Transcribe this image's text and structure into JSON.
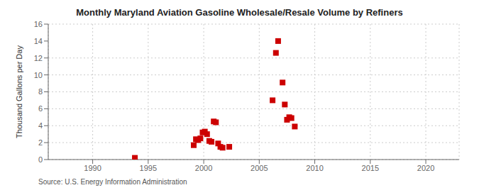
{
  "chart_data": {
    "type": "scatter",
    "title": "Monthly Maryland Aviation Gasoline Wholesale/Resale Volume by Refiners",
    "ylabel": "Thousand Gallons per Day",
    "annotations": [
      "Source: U.S. Energy Information Administration"
    ],
    "color": "#cc0000",
    "marker": "square",
    "grid": true,
    "xlim": [
      1986,
      2023
    ],
    "ylim": [
      0,
      16
    ],
    "xticks": [
      1990,
      1995,
      2000,
      2005,
      2010,
      2015,
      2020
    ],
    "yticks": [
      0,
      2,
      4,
      6,
      8,
      10,
      12,
      14,
      16
    ],
    "x": [
      1993.8,
      1999.1,
      1999.3,
      1999.5,
      1999.7,
      1999.9,
      2000.1,
      2000.3,
      2000.5,
      2000.7,
      2000.9,
      2001.1,
      2001.3,
      2001.5,
      2001.7,
      2002.3,
      2006.2,
      2006.5,
      2006.7,
      2007.1,
      2007.3,
      2007.5,
      2007.7,
      2007.9,
      2008.2
    ],
    "values": [
      0.2,
      1.7,
      2.4,
      2.3,
      2.5,
      3.2,
      3.3,
      3.0,
      2.2,
      2.1,
      4.5,
      4.4,
      1.9,
      1.5,
      1.4,
      1.5,
      7.0,
      12.6,
      14.0,
      9.1,
      6.5,
      4.7,
      5.0,
      4.9,
      3.9
    ]
  }
}
